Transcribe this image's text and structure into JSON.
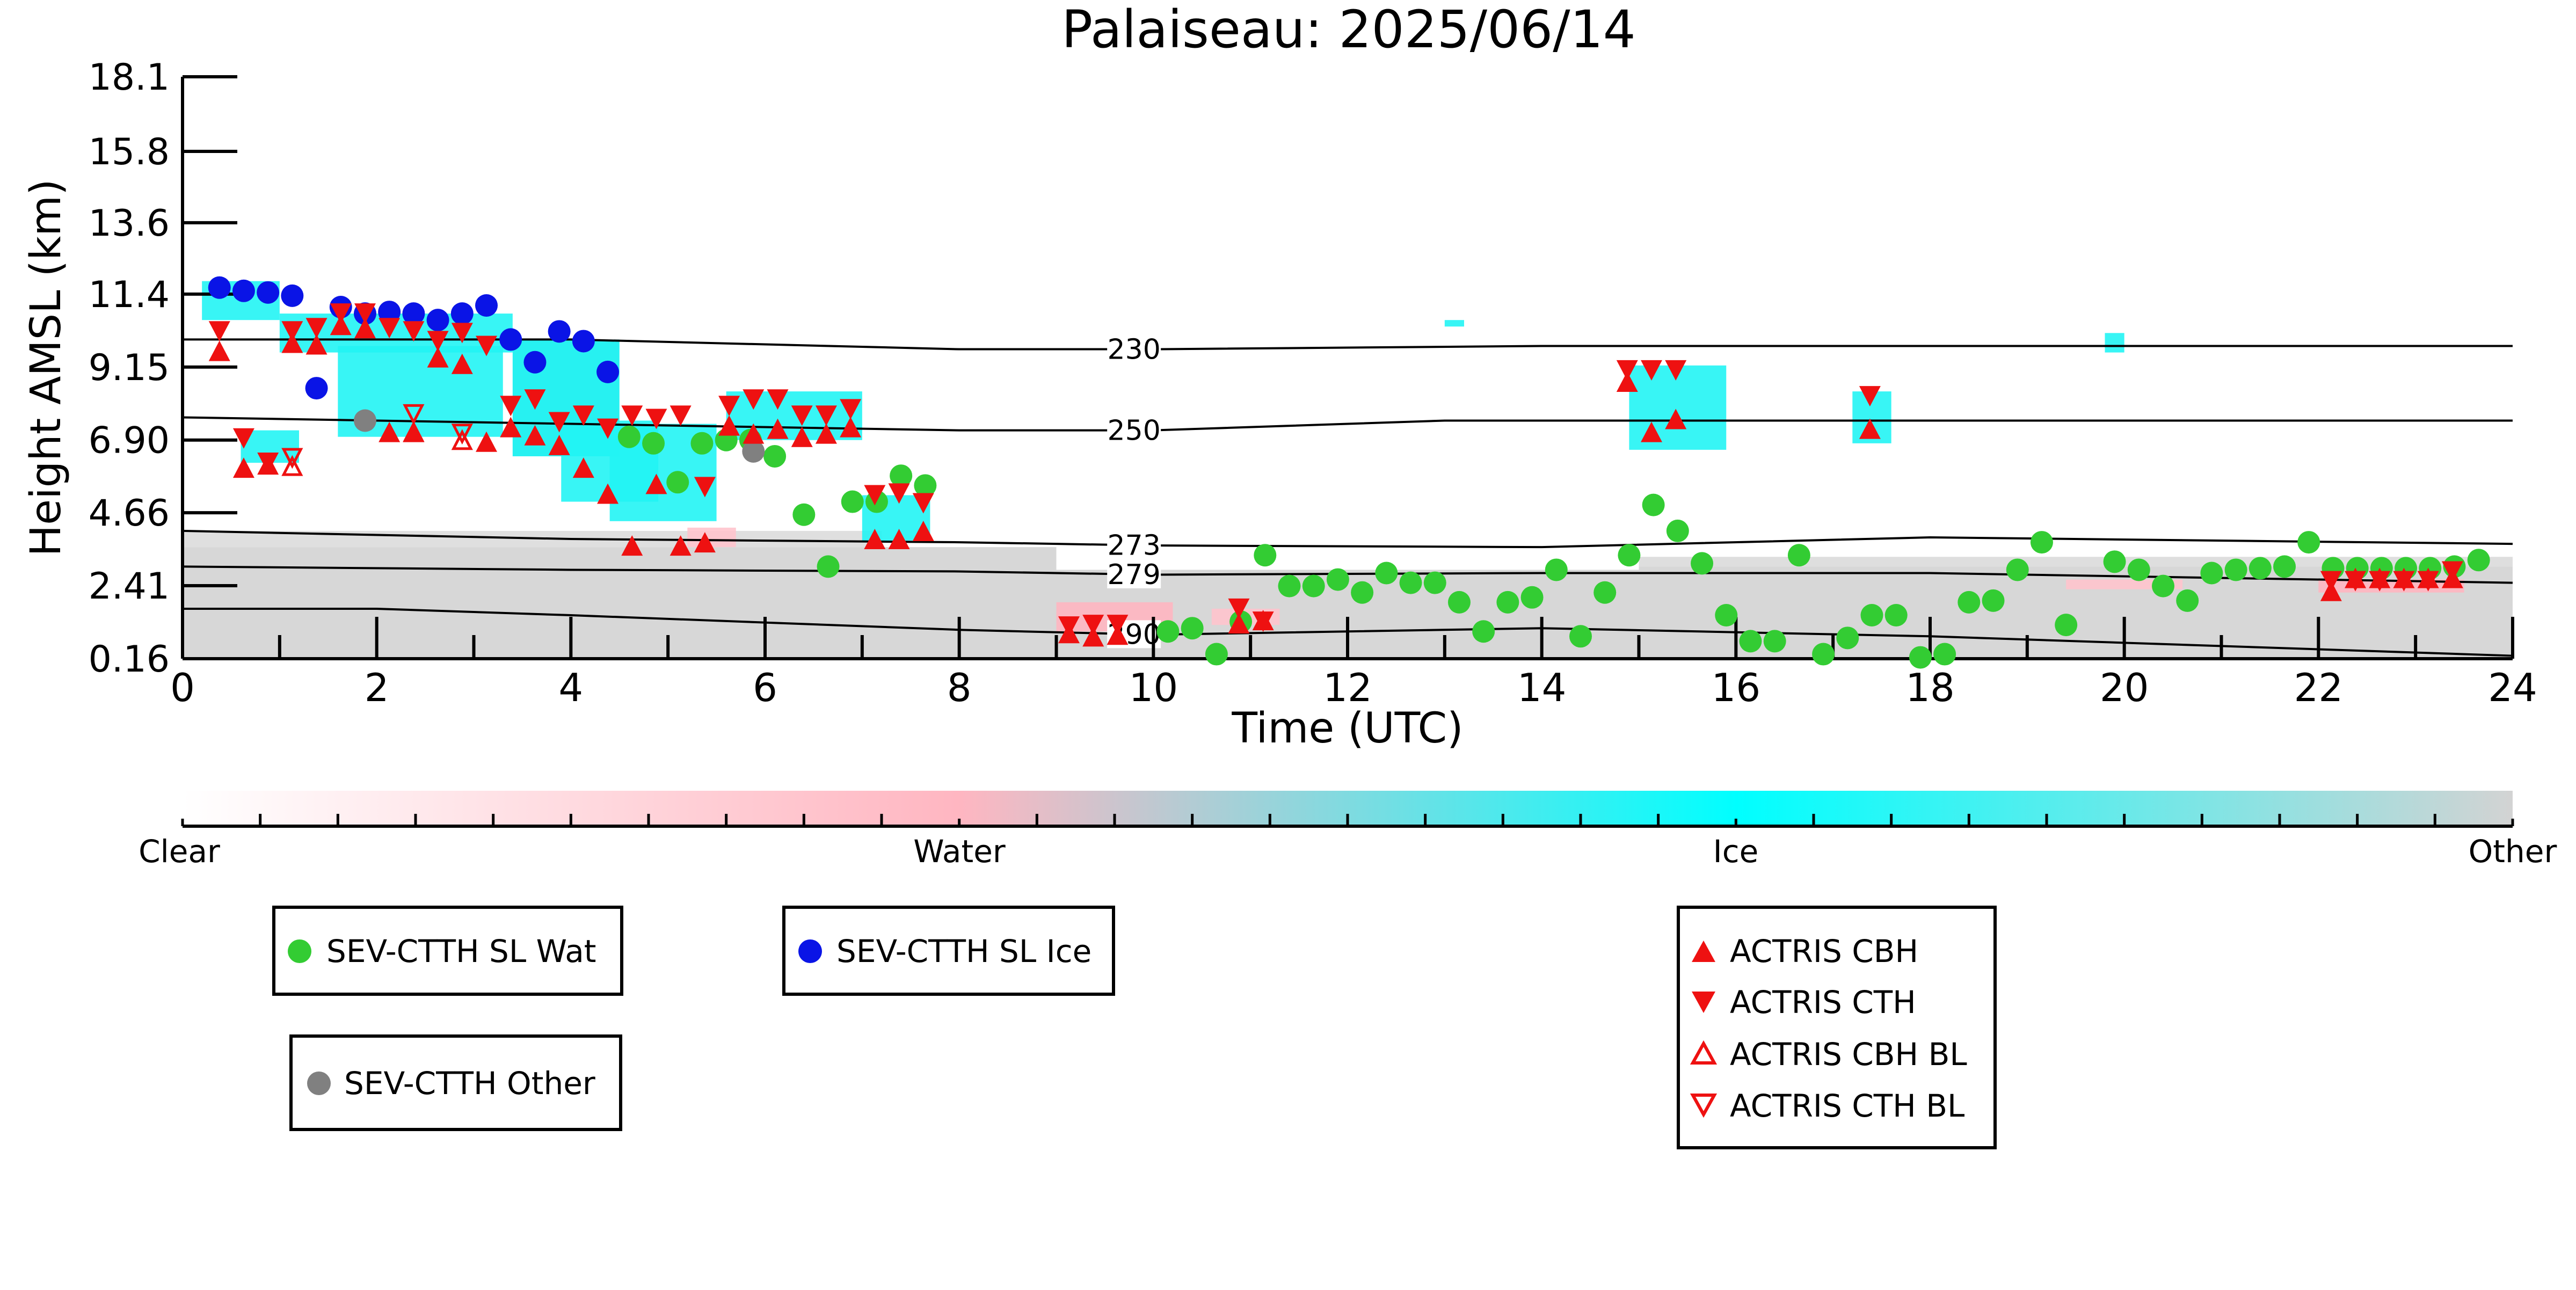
{
  "chart_data": {
    "type": "scatter",
    "title": "Palaiseau: 2025/06/14",
    "xlabel": "Time (UTC)",
    "ylabel": "Height AMSL (km)",
    "xlim": [
      0,
      24
    ],
    "ylim": [
      0.16,
      18.1
    ],
    "x_ticks": [
      0,
      2,
      4,
      6,
      8,
      10,
      12,
      14,
      16,
      18,
      20,
      22,
      24
    ],
    "x_tick_labels": [
      "0",
      "2",
      "4",
      "6",
      "8",
      "10",
      "12",
      "14",
      "16",
      "18",
      "20",
      "22",
      "24"
    ],
    "y_ticks": [
      0.16,
      2.41,
      4.66,
      6.9,
      9.15,
      11.4,
      13.6,
      15.8,
      18.1
    ],
    "y_tick_labels": [
      "0.16",
      "2.41",
      "4.66",
      "6.90",
      "9.15",
      "11.4",
      "13.6",
      "15.8",
      "18.1"
    ],
    "grid": false,
    "colorbar": {
      "labels": [
        "Clear",
        "Water",
        "Ice",
        "Other"
      ],
      "colors": [
        "#ffffff",
        "#ffb6c1",
        "#00ffff",
        "#d3d3d3"
      ]
    },
    "isotherms": [
      {
        "label": "230",
        "x": [
          0,
          4,
          8,
          10,
          14,
          18,
          24
        ],
        "y": [
          10.0,
          10.0,
          9.7,
          9.7,
          9.8,
          9.8,
          9.8
        ]
      },
      {
        "label": "250",
        "x": [
          0,
          4,
          8,
          10,
          13,
          18,
          24
        ],
        "y": [
          7.6,
          7.4,
          7.2,
          7.2,
          7.5,
          7.5,
          7.5
        ]
      },
      {
        "label": "273",
        "x": [
          0,
          4,
          8,
          10,
          14,
          18,
          24
        ],
        "y": [
          4.1,
          3.85,
          3.75,
          3.65,
          3.6,
          3.9,
          3.7
        ]
      },
      {
        "label": "279",
        "x": [
          0,
          4,
          8,
          10,
          14,
          18,
          24
        ],
        "y": [
          3.0,
          2.9,
          2.85,
          2.75,
          2.8,
          2.8,
          2.5
        ]
      },
      {
        "label": "290",
        "x": [
          0,
          2,
          4,
          8,
          10,
          14,
          18,
          24
        ],
        "y": [
          1.7,
          1.7,
          1.5,
          1.05,
          0.9,
          1.1,
          0.85,
          0.25
        ]
      }
    ],
    "series": [
      {
        "name": "SEV-CTTH SL Wat",
        "color": "#33cc33",
        "marker": "circle",
        "x": [
          4.6,
          4.85,
          5.1,
          5.35,
          5.6,
          5.85,
          6.1,
          6.4,
          6.65,
          6.9,
          7.15,
          7.4,
          7.65,
          10.15,
          10.4,
          10.65,
          10.9,
          11.15,
          11.4,
          11.65,
          11.9,
          12.15,
          12.4,
          12.65,
          12.9,
          13.15,
          13.4,
          13.65,
          13.9,
          14.15,
          14.4,
          14.65,
          14.9,
          15.15,
          15.4,
          15.65,
          15.9,
          16.15,
          16.4,
          16.65,
          16.9,
          17.15,
          17.4,
          17.65,
          17.9,
          18.15,
          18.4,
          18.65,
          18.9,
          19.15,
          19.4,
          19.9,
          20.15,
          20.4,
          20.65,
          20.9,
          21.15,
          21.4,
          21.65,
          21.9,
          22.15,
          22.4,
          22.65,
          22.9,
          23.15,
          23.4,
          23.65
        ],
        "y": [
          7.0,
          6.8,
          5.6,
          6.8,
          6.9,
          6.9,
          6.4,
          4.6,
          3.0,
          5.0,
          5.0,
          5.8,
          5.5,
          1.0,
          1.1,
          0.3,
          1.3,
          3.35,
          2.4,
          2.4,
          2.6,
          2.2,
          2.8,
          2.5,
          2.5,
          1.9,
          1.0,
          1.9,
          2.05,
          2.9,
          0.85,
          2.2,
          3.35,
          4.9,
          4.1,
          3.1,
          1.5,
          0.7,
          0.7,
          3.35,
          0.3,
          0.8,
          1.5,
          1.5,
          0.2,
          0.3,
          1.9,
          1.95,
          2.9,
          3.75,
          1.2,
          3.15,
          2.9,
          2.4,
          1.95,
          2.8,
          2.9,
          2.95,
          3.0,
          3.75,
          2.95,
          2.95,
          2.95,
          2.95,
          2.95,
          3.0,
          3.2
        ]
      },
      {
        "name": "SEV-CTTH SL Ice",
        "color": "#0a14e6",
        "marker": "circle",
        "x": [
          0.38,
          0.63,
          0.88,
          1.13,
          1.38,
          1.63,
          1.88,
          2.13,
          2.38,
          2.63,
          2.88,
          3.13,
          3.38,
          3.63,
          3.88,
          4.13,
          4.38
        ],
        "y": [
          11.6,
          11.5,
          11.45,
          11.35,
          8.5,
          11.0,
          10.8,
          10.85,
          10.8,
          10.6,
          10.8,
          11.05,
          10.0,
          9.3,
          10.25,
          9.95,
          9.0
        ]
      },
      {
        "name": "SEV-CTTH Other",
        "color": "#808080",
        "marker": "circle",
        "x": [
          1.88,
          5.88
        ],
        "y": [
          7.5,
          6.55
        ]
      },
      {
        "name": "ACTRIS CBH",
        "color": "#ee1111",
        "marker": "triangle-up",
        "x": [
          0.38,
          0.63,
          0.88,
          1.13,
          1.38,
          1.63,
          1.88,
          2.13,
          2.38,
          2.63,
          2.88,
          3.13,
          3.38,
          3.63,
          3.88,
          4.13,
          4.38,
          4.63,
          4.88,
          5.13,
          5.38,
          5.63,
          5.88,
          6.13,
          6.38,
          6.63,
          6.88,
          7.13,
          7.38,
          7.63,
          9.13,
          9.38,
          9.63,
          10.88,
          11.13,
          14.88,
          15.13,
          15.38,
          17.38,
          22.13,
          22.38,
          22.63,
          22.88,
          23.13,
          23.38
        ],
        "y": [
          9.6,
          6.0,
          6.1,
          9.85,
          9.8,
          10.4,
          10.3,
          7.1,
          7.1,
          9.4,
          9.2,
          6.8,
          7.25,
          7.0,
          6.7,
          6.0,
          5.2,
          3.6,
          5.5,
          3.6,
          3.7,
          7.3,
          7.05,
          7.2,
          6.95,
          7.05,
          7.25,
          3.8,
          3.8,
          4.05,
          0.9,
          0.8,
          0.85,
          1.2,
          1.3,
          8.65,
          7.1,
          7.5,
          7.2,
          2.2,
          2.6,
          2.6,
          2.6,
          2.6,
          2.6
        ]
      },
      {
        "name": "ACTRIS CTH",
        "color": "#ee1111",
        "marker": "triangle-down",
        "x": [
          0.38,
          0.63,
          0.88,
          1.13,
          1.38,
          1.63,
          1.88,
          2.13,
          2.38,
          2.63,
          2.88,
          3.13,
          3.38,
          3.63,
          3.88,
          4.13,
          4.38,
          4.63,
          4.88,
          5.13,
          5.38,
          5.63,
          5.88,
          6.13,
          6.38,
          6.63,
          6.88,
          7.13,
          7.38,
          7.63,
          9.13,
          9.38,
          9.63,
          10.88,
          11.13,
          14.88,
          15.13,
          15.38,
          17.38,
          22.13,
          22.38,
          22.63,
          22.88,
          23.13,
          23.38
        ],
        "y": [
          10.3,
          7.0,
          6.25,
          10.3,
          10.4,
          10.85,
          10.85,
          10.4,
          10.3,
          10.0,
          10.25,
          9.85,
          8.0,
          8.2,
          7.5,
          7.7,
          7.3,
          7.7,
          7.6,
          7.7,
          5.5,
          8.0,
          8.2,
          8.2,
          7.7,
          7.7,
          7.9,
          5.25,
          5.3,
          5.0,
          1.2,
          1.25,
          1.25,
          1.75,
          1.35,
          9.1,
          9.1,
          9.1,
          8.3,
          2.6,
          2.6,
          2.6,
          2.6,
          2.6,
          2.9
        ]
      },
      {
        "name": "ACTRIS CBH BL",
        "color": "#ee1111",
        "marker": "triangle-up-open",
        "x": [
          1.13,
          2.38,
          2.88
        ],
        "y": [
          6.05,
          7.1,
          6.85
        ]
      },
      {
        "name": "ACTRIS CTH BL",
        "color": "#ee1111",
        "marker": "triangle-down-open",
        "x": [
          1.13,
          2.38,
          2.88
        ],
        "y": [
          6.4,
          7.75,
          7.15
        ]
      }
    ]
  }
}
